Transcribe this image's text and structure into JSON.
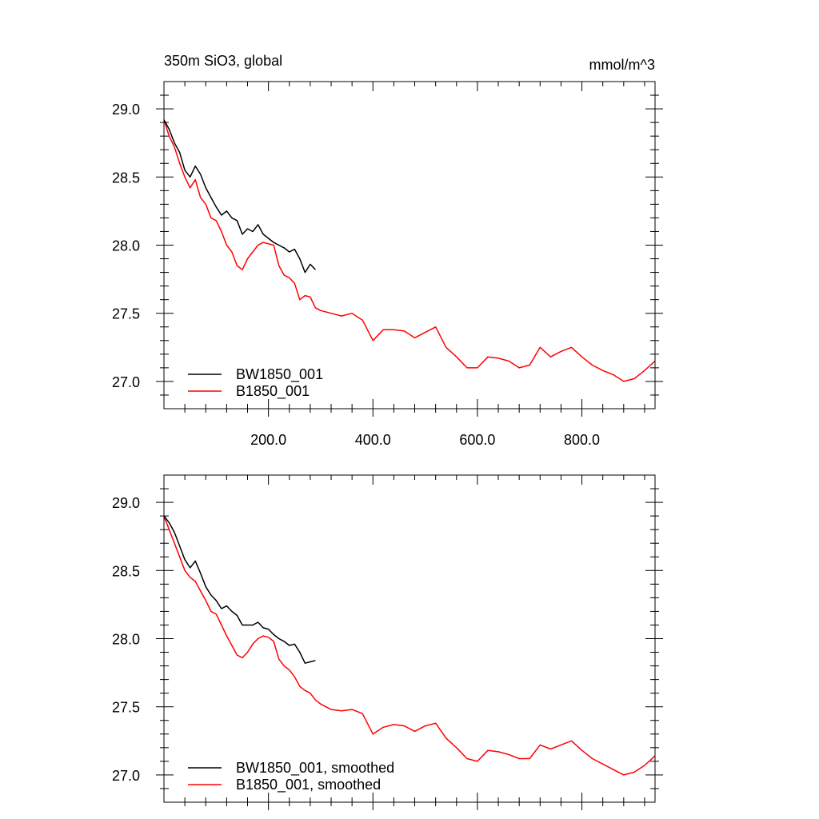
{
  "chart_data": [
    {
      "type": "line",
      "title": "350m SiO3, global",
      "units": "mmol/m^3",
      "xlim": [
        0,
        940
      ],
      "ylim": [
        26.8,
        29.2
      ],
      "x_ticks": [
        200,
        400,
        600,
        800
      ],
      "x_tick_labels": [
        "200.0",
        "400.0",
        "600.0",
        "800.0"
      ],
      "y_ticks": [
        27.0,
        27.5,
        28.0,
        28.5,
        29.0
      ],
      "y_tick_labels": [
        "27.0",
        "27.5",
        "28.0",
        "28.5",
        "29.0"
      ],
      "legend_position": "bottom-left",
      "series": [
        {
          "name": "BW1850_001",
          "color": "#000000",
          "x": [
            0,
            10,
            20,
            30,
            40,
            50,
            60,
            70,
            80,
            90,
            100,
            110,
            120,
            130,
            140,
            150,
            160,
            170,
            180,
            190,
            200,
            210,
            220,
            230,
            240,
            250,
            260,
            270,
            280,
            290
          ],
          "y": [
            28.92,
            28.85,
            28.75,
            28.68,
            28.55,
            28.5,
            28.58,
            28.52,
            28.42,
            28.35,
            28.28,
            28.22,
            28.25,
            28.2,
            28.18,
            28.08,
            28.12,
            28.1,
            28.15,
            28.08,
            28.05,
            28.02,
            28.0,
            27.98,
            27.95,
            27.97,
            27.9,
            27.8,
            27.86,
            27.82
          ]
        },
        {
          "name": "B1850_001",
          "color": "#ff0000",
          "x": [
            0,
            10,
            20,
            30,
            40,
            50,
            60,
            70,
            80,
            90,
            100,
            110,
            120,
            130,
            140,
            150,
            160,
            170,
            180,
            190,
            200,
            210,
            220,
            230,
            240,
            250,
            260,
            270,
            280,
            290,
            300,
            320,
            340,
            360,
            380,
            400,
            420,
            440,
            460,
            480,
            500,
            520,
            540,
            560,
            580,
            600,
            620,
            640,
            660,
            680,
            700,
            720,
            740,
            760,
            780,
            800,
            820,
            840,
            860,
            880,
            900,
            920,
            940
          ],
          "y": [
            28.92,
            28.8,
            28.72,
            28.6,
            28.5,
            28.42,
            28.48,
            28.35,
            28.3,
            28.2,
            28.18,
            28.1,
            28.0,
            27.95,
            27.85,
            27.82,
            27.9,
            27.95,
            28.0,
            28.02,
            28.01,
            28.0,
            27.85,
            27.78,
            27.76,
            27.72,
            27.6,
            27.63,
            27.62,
            27.54,
            27.52,
            27.5,
            27.48,
            27.5,
            27.45,
            27.3,
            27.38,
            27.38,
            27.37,
            27.32,
            27.36,
            27.4,
            27.25,
            27.18,
            27.1,
            27.1,
            27.18,
            27.17,
            27.15,
            27.1,
            27.12,
            27.25,
            27.18,
            27.22,
            27.25,
            27.18,
            27.12,
            27.08,
            27.05,
            27.0,
            27.02,
            27.08,
            27.15
          ]
        }
      ]
    },
    {
      "type": "line",
      "xlim": [
        0,
        940
      ],
      "ylim": [
        26.8,
        29.2
      ],
      "x_ticks": [
        200,
        400,
        600,
        800
      ],
      "y_ticks": [
        27.0,
        27.5,
        28.0,
        28.5,
        29.0
      ],
      "y_tick_labels": [
        "27.0",
        "27.5",
        "28.0",
        "28.5",
        "29.0"
      ],
      "legend_position": "bottom-left",
      "series": [
        {
          "name": "BW1850_001, smoothed",
          "color": "#000000",
          "x": [
            0,
            10,
            20,
            30,
            40,
            50,
            60,
            70,
            80,
            90,
            100,
            110,
            120,
            130,
            140,
            150,
            160,
            170,
            180,
            190,
            200,
            210,
            220,
            230,
            240,
            250,
            260,
            270,
            280,
            290
          ],
          "y": [
            28.9,
            28.85,
            28.78,
            28.68,
            28.58,
            28.52,
            28.57,
            28.48,
            28.38,
            28.32,
            28.28,
            28.22,
            28.24,
            28.2,
            28.17,
            28.1,
            28.1,
            28.1,
            28.12,
            28.08,
            28.07,
            28.03,
            28.0,
            27.98,
            27.95,
            27.96,
            27.9,
            27.82,
            27.83,
            27.84
          ]
        },
        {
          "name": "B1850_001, smoothed",
          "color": "#ff0000",
          "x": [
            0,
            10,
            20,
            30,
            40,
            50,
            60,
            70,
            80,
            90,
            100,
            110,
            120,
            130,
            140,
            150,
            160,
            170,
            180,
            190,
            200,
            210,
            220,
            230,
            240,
            250,
            260,
            270,
            280,
            290,
            300,
            320,
            340,
            360,
            380,
            400,
            420,
            440,
            460,
            480,
            500,
            520,
            540,
            560,
            580,
            600,
            620,
            640,
            660,
            680,
            700,
            720,
            740,
            760,
            780,
            800,
            820,
            840,
            860,
            880,
            900,
            920,
            940
          ],
          "y": [
            28.9,
            28.8,
            28.7,
            28.6,
            28.5,
            28.45,
            28.42,
            28.35,
            28.28,
            28.2,
            28.18,
            28.1,
            28.02,
            27.95,
            27.88,
            27.86,
            27.9,
            27.96,
            28.0,
            28.02,
            28.01,
            27.98,
            27.85,
            27.8,
            27.77,
            27.72,
            27.65,
            27.62,
            27.6,
            27.55,
            27.52,
            27.48,
            27.47,
            27.48,
            27.45,
            27.3,
            27.35,
            27.37,
            27.36,
            27.32,
            27.36,
            27.38,
            27.27,
            27.2,
            27.12,
            27.1,
            27.18,
            27.17,
            27.15,
            27.12,
            27.12,
            27.22,
            27.19,
            27.22,
            27.25,
            27.18,
            27.12,
            27.08,
            27.04,
            27.0,
            27.02,
            27.07,
            27.14
          ]
        }
      ]
    }
  ]
}
